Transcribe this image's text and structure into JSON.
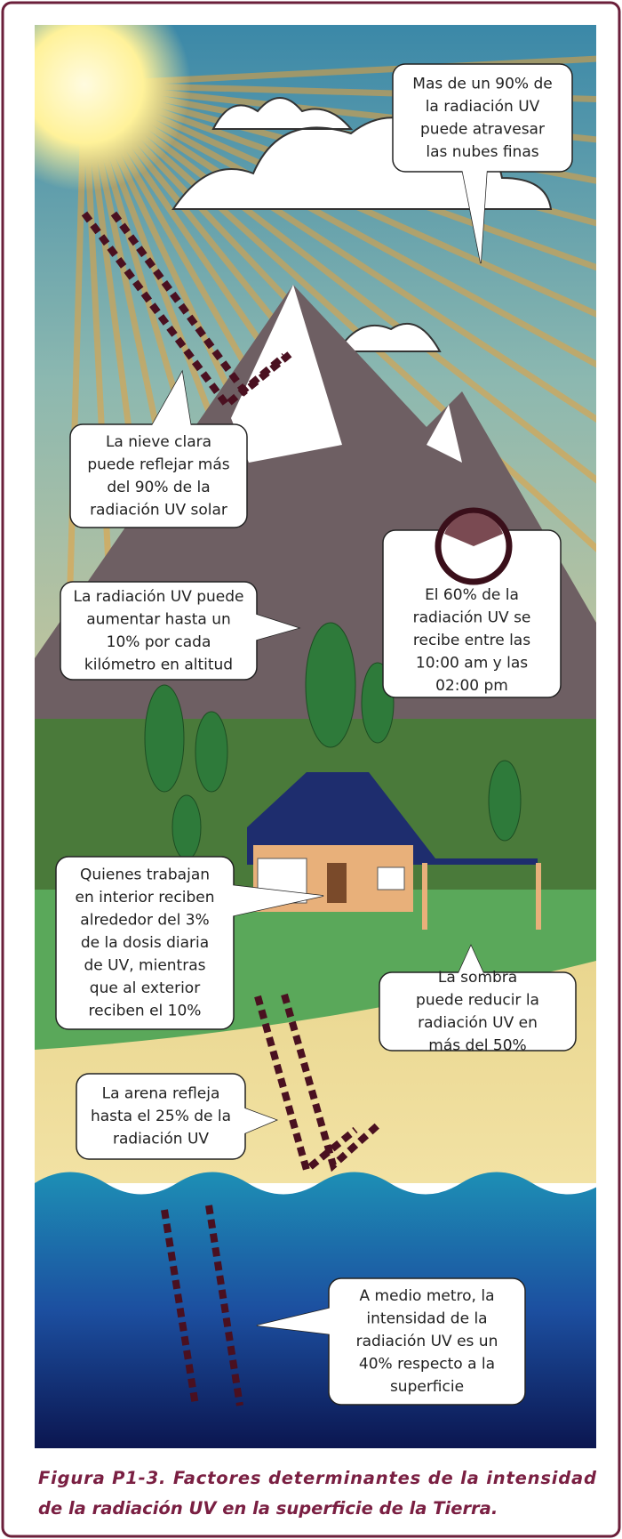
{
  "figure": {
    "callouts": [
      {
        "lines": [
          "Mas de un 90% de",
          "la radiación UV",
          "puede atravesar",
          "las nubes finas"
        ]
      },
      {
        "lines": [
          "La nieve clara",
          "puede reflejar más",
          "del 90% de  la",
          "radiación UV solar"
        ]
      },
      {
        "lines": [
          "El 60% de la",
          "radiación UV se",
          "recibe entre las",
          "10:00 am y las",
          "02:00 pm"
        ]
      },
      {
        "lines": [
          "La radiación UV puede",
          "aumentar hasta un",
          "10% por cada",
          "kilómetro en altitud"
        ]
      },
      {
        "lines": [
          "Quienes trabajan",
          "en interior reciben",
          "alrededor del 3%",
          "de la dosis diaria",
          "de UV, mientras",
          "que al exterior",
          "reciben el 10%"
        ]
      },
      {
        "lines": [
          "La sombra",
          "puede reducir la",
          "radiación UV en",
          "más del 50%"
        ]
      },
      {
        "lines": [
          "La arena refleja",
          "hasta el 25% de la",
          "radiación UV"
        ]
      },
      {
        "lines": [
          "A medio metro, la",
          "intensidad de la",
          "radiación UV es un",
          "40% respecto a la",
          "superficie"
        ]
      }
    ],
    "caption": {
      "lines": [
        "Figura P1-3. Factores determinantes de la intensidad",
        "de la radiación UV en la superficie de la Tierra."
      ]
    }
  }
}
